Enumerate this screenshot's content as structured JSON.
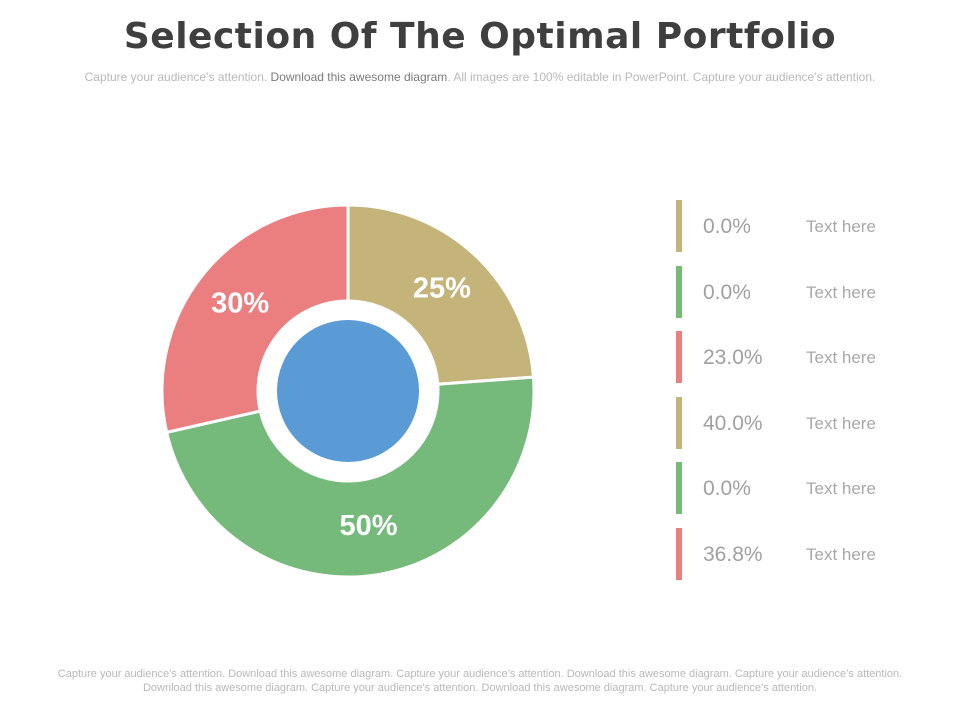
{
  "title": "Selection Of The Optimal Portfolio",
  "subtitle": {
    "part1": "Capture your audience’s attention. ",
    "part2": "Download this awesome diagram",
    "part3": ". All images are 100% editable in PowerPoint. Capture your audience’s attention."
  },
  "chart_data": {
    "type": "pie",
    "style": "donut",
    "slices": [
      {
        "label": "25%",
        "value": 25,
        "color": "#c4b47a"
      },
      {
        "label": "50%",
        "value": 50,
        "color": "#76ba7b"
      },
      {
        "label": "30%",
        "value": 30,
        "color": "#eb7f7f"
      }
    ],
    "center_color": "#5a9ad5",
    "label_color": "#ffffff"
  },
  "legend": [
    {
      "value": "0.0%",
      "label": "Text here",
      "color": "#c4b47a"
    },
    {
      "value": "0.0%",
      "label": "Text here",
      "color": "#76ba7b"
    },
    {
      "value": "23.0%",
      "label": "Text here",
      "color": "#eb7f7f"
    },
    {
      "value": "40.0%",
      "label": "Text here",
      "color": "#c4b47a"
    },
    {
      "value": "0.0%",
      "label": "Text here",
      "color": "#76ba7b"
    },
    {
      "value": "36.8%",
      "label": "Text here",
      "color": "#eb7f7f"
    }
  ],
  "footer": {
    "line1": "Capture your audience’s attention. Download this awesome diagram. Capture your audience’s attention. Download this awesome diagram. Capture your audience’s attention.",
    "line2": "Download this awesome diagram. Capture your audience’s attention. Download this awesome diagram. Capture your audience’s attention."
  }
}
